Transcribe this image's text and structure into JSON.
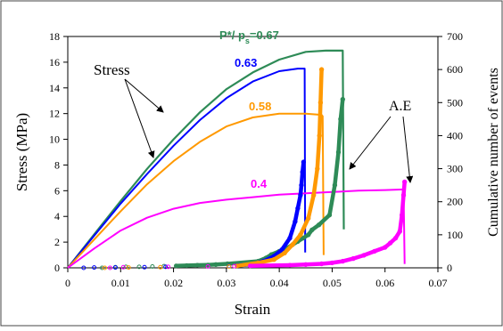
{
  "chart_data": {
    "type": "line",
    "xlabel": "Strain",
    "ylabel_left": "Stress (MPa)",
    "ylabel_right": "Cumulative number of events",
    "xlim": [
      0,
      0.07
    ],
    "ylim_left": [
      0,
      18
    ],
    "ylim_right": [
      0,
      700
    ],
    "x_ticks": [
      "0",
      "0.01",
      "0.02",
      "0.03",
      "0.04",
      "0.05",
      "0.06",
      "0.07"
    ],
    "y_left_ticks": [
      "0",
      "2",
      "4",
      "6",
      "8",
      "10",
      "12",
      "14",
      "16",
      "18"
    ],
    "y_right_ticks": [
      "0",
      "100",
      "200",
      "300",
      "400",
      "500",
      "600",
      "700"
    ],
    "grid": false,
    "annotations": {
      "stress": "Stress",
      "ae": "A.E",
      "ratio_067_prefix": "P*/ p",
      "ratio_067_sub": "s",
      "ratio_067_value": "=0.67"
    },
    "series": [
      {
        "name": "0.67",
        "color": "#2e8b57",
        "stress": {
          "x": [
            0,
            0.005,
            0.01,
            0.015,
            0.02,
            0.025,
            0.03,
            0.035,
            0.04,
            0.045,
            0.0488,
            0.052,
            0.0522
          ],
          "y": [
            0,
            2.6,
            5.2,
            7.7,
            10.0,
            12.1,
            13.9,
            15.2,
            16.2,
            16.8,
            16.9,
            16.9,
            3.0
          ]
        },
        "ae": {
          "x": [
            0.0065,
            0.009,
            0.011,
            0.0135,
            0.016,
            0.0182,
            0.0205,
            0.0225,
            0.0245,
            0.0265,
            0.028,
            0.0302,
            0.036,
            0.0375,
            0.0385,
            0.04,
            0.0415,
            0.0425,
            0.0435,
            0.0445,
            0.0455,
            0.0462,
            0.0475,
            0.0495,
            0.0505,
            0.0512,
            0.0516,
            0.052
          ],
          "y": [
            0,
            2,
            3,
            3,
            4,
            5,
            6,
            7,
            8,
            9,
            10,
            12,
            20,
            30,
            40,
            50,
            60,
            70,
            80,
            90,
            100,
            115,
            130,
            160,
            250,
            350,
            450,
            510
          ]
        }
      },
      {
        "name": "0.63",
        "color": "#0000ff",
        "stress": {
          "x": [
            0,
            0.005,
            0.01,
            0.015,
            0.02,
            0.025,
            0.03,
            0.035,
            0.04,
            0.0435,
            0.0448,
            0.0449
          ],
          "y": [
            0,
            2.5,
            5.0,
            7.3,
            9.5,
            11.5,
            13.2,
            14.5,
            15.3,
            15.5,
            15.5,
            1.2
          ]
        },
        "ae": {
          "x": [
            0.003,
            0.005,
            0.009,
            0.0145,
            0.0185,
            0.0305,
            0.032,
            0.0345,
            0.037,
            0.039,
            0.0405,
            0.042,
            0.043,
            0.0435,
            0.044,
            0.0442,
            0.0444,
            0.0446
          ],
          "y": [
            0,
            1,
            1,
            2,
            3,
            5,
            7,
            10,
            20,
            35,
            55,
            90,
            140,
            180,
            220,
            250,
            290,
            320
          ]
        }
      },
      {
        "name": "0.58",
        "color": "#ff9900",
        "stress": {
          "x": [
            0,
            0.005,
            0.01,
            0.015,
            0.02,
            0.025,
            0.03,
            0.035,
            0.04,
            0.045,
            0.048,
            0.0482,
            0.0484
          ],
          "y": [
            0,
            2.2,
            4.4,
            6.5,
            8.3,
            9.8,
            11.0,
            11.7,
            12.0,
            12.0,
            11.9,
            11.8,
            1.0
          ]
        },
        "ae": {
          "x": [
            0.007,
            0.0115,
            0.0175,
            0.0305,
            0.032,
            0.036,
            0.039,
            0.041,
            0.0425,
            0.044,
            0.0455,
            0.0465,
            0.0472,
            0.0476,
            0.0478,
            0.048
          ],
          "y": [
            0,
            1,
            2,
            4,
            6,
            15,
            25,
            45,
            70,
            100,
            150,
            220,
            300,
            400,
            500,
            600
          ]
        }
      },
      {
        "name": "0.4",
        "color": "#ff00ff",
        "stress": {
          "x": [
            0,
            0.005,
            0.01,
            0.015,
            0.02,
            0.025,
            0.03,
            0.035,
            0.04,
            0.045,
            0.05,
            0.055,
            0.06,
            0.0635,
            0.0637
          ],
          "y": [
            0,
            1.5,
            2.9,
            3.9,
            4.6,
            5.05,
            5.3,
            5.5,
            5.7,
            5.8,
            5.9,
            6.0,
            6.05,
            6.1,
            0.3
          ]
        },
        "ae": {
          "x": [
            0.008,
            0.0105,
            0.019,
            0.0265,
            0.0315,
            0.0345,
            0.042,
            0.045,
            0.048,
            0.05,
            0.052,
            0.054,
            0.056,
            0.058,
            0.06,
            0.061,
            0.062,
            0.0628,
            0.0632,
            0.0635,
            0.0637
          ],
          "y": [
            0,
            2,
            3,
            4,
            5,
            6,
            8,
            10,
            12,
            15,
            20,
            28,
            38,
            50,
            62,
            75,
            90,
            110,
            160,
            220,
            260
          ]
        }
      }
    ]
  }
}
